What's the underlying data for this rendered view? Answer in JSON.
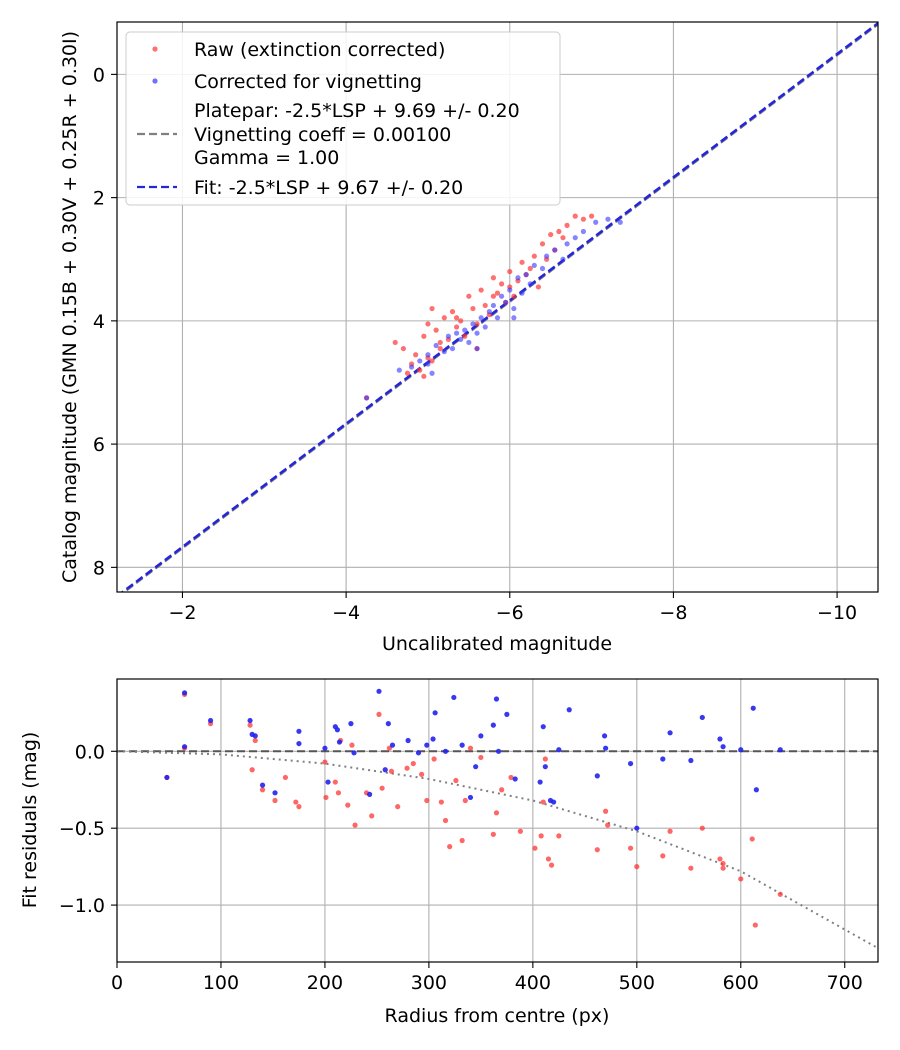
{
  "chart_data": [
    {
      "type": "scatter",
      "xlabel": "Uncalibrated magnitude",
      "ylabel": "Catalog magnitude (GMN 0.15B + 0.30V + 0.25R + 0.30I)",
      "xlim": [
        -1.2,
        -10.5
      ],
      "ylim": [
        8.4,
        -0.85
      ],
      "x_inverted": true,
      "y_inverted": true,
      "grid": true,
      "xticks": [
        -2,
        -4,
        -6,
        -8,
        -10
      ],
      "yticks": [
        0,
        2,
        4,
        6,
        8
      ],
      "xtick_labels": [
        "−2",
        "−4",
        "−6",
        "−8",
        "−10"
      ],
      "ytick_labels": [
        "0",
        "2",
        "4",
        "6",
        "8"
      ],
      "legend_position": "top-left",
      "legend": {
        "raw": "Raw (extinction corrected)",
        "corrected": "Corrected for vignetting",
        "platepar_lines": [
          "Platepar: -2.5*LSP + 9.69 +/- 0.20",
          "Vignetting coeff = 0.00100",
          "Gamma = 1.00"
        ],
        "fit": "Fit: -2.5*LSP + 9.67 +/- 0.20"
      },
      "colors": {
        "raw": "#ff3333",
        "corrected": "#3333ff",
        "platepar": "#808080",
        "fit": "#2626d9",
        "grid": "#b0b0b0"
      },
      "lines": [
        {
          "name": "platepar",
          "style": "dashed",
          "slope": 1,
          "intercept": 9.69
        },
        {
          "name": "fit",
          "style": "dashed",
          "slope": 1,
          "intercept": 9.67
        }
      ],
      "series": [
        {
          "name": "Raw (extinction corrected)",
          "points": [
            [
              -4.25,
              5.25
            ],
            [
              -4.6,
              4.35
            ],
            [
              -4.7,
              4.45
            ],
            [
              -4.75,
              4.85
            ],
            [
              -4.8,
              4.7
            ],
            [
              -4.85,
              4.55
            ],
            [
              -4.9,
              4.8
            ],
            [
              -4.95,
              4.25
            ],
            [
              -5.0,
              4.05
            ],
            [
              -5.0,
              4.6
            ],
            [
              -5.05,
              3.8
            ],
            [
              -5.1,
              4.15
            ],
            [
              -5.15,
              4.45
            ],
            [
              -5.2,
              3.95
            ],
            [
              -5.25,
              4.3
            ],
            [
              -5.3,
              3.85
            ],
            [
              -5.35,
              4.1
            ],
            [
              -5.4,
              4.0
            ],
            [
              -5.45,
              4.25
            ],
            [
              -5.5,
              3.6
            ],
            [
              -5.55,
              3.8
            ],
            [
              -5.6,
              4.05
            ],
            [
              -5.65,
              3.5
            ],
            [
              -5.7,
              3.75
            ],
            [
              -5.75,
              3.9
            ],
            [
              -5.8,
              3.3
            ],
            [
              -5.85,
              3.55
            ],
            [
              -5.9,
              3.4
            ],
            [
              -5.95,
              3.7
            ],
            [
              -6.0,
              3.2
            ],
            [
              -6.05,
              3.6
            ],
            [
              -6.1,
              3.35
            ],
            [
              -6.15,
              3.05
            ],
            [
              -6.2,
              3.25
            ],
            [
              -6.25,
              3.15
            ],
            [
              -6.3,
              2.95
            ],
            [
              -6.35,
              3.45
            ],
            [
              -6.4,
              2.75
            ],
            [
              -6.45,
              3.0
            ],
            [
              -6.5,
              2.6
            ],
            [
              -6.55,
              2.85
            ],
            [
              -6.6,
              2.55
            ],
            [
              -6.65,
              2.65
            ],
            [
              -6.7,
              2.45
            ],
            [
              -6.8,
              2.3
            ],
            [
              -6.9,
              2.35
            ],
            [
              -7.0,
              2.3
            ],
            [
              -5.05,
              4.65
            ],
            [
              -4.95,
              4.9
            ],
            [
              -5.15,
              4.35
            ],
            [
              -5.35,
              3.95
            ],
            [
              -5.6,
              4.45
            ],
            [
              -5.8,
              3.6
            ],
            [
              -6.0,
              3.45
            ]
          ]
        },
        {
          "name": "Corrected for vignetting",
          "points": [
            [
              -4.25,
              5.25
            ],
            [
              -4.65,
              4.8
            ],
            [
              -4.8,
              4.75
            ],
            [
              -4.9,
              4.65
            ],
            [
              -5.0,
              4.55
            ],
            [
              -5.05,
              4.85
            ],
            [
              -5.1,
              4.4
            ],
            [
              -5.2,
              4.5
            ],
            [
              -5.25,
              4.25
            ],
            [
              -5.3,
              4.45
            ],
            [
              -5.4,
              4.3
            ],
            [
              -5.45,
              4.15
            ],
            [
              -5.5,
              4.35
            ],
            [
              -5.55,
              4.05
            ],
            [
              -5.6,
              4.2
            ],
            [
              -5.65,
              3.95
            ],
            [
              -5.7,
              4.1
            ],
            [
              -5.75,
              3.85
            ],
            [
              -5.8,
              3.75
            ],
            [
              -5.85,
              3.95
            ],
            [
              -5.9,
              3.6
            ],
            [
              -5.95,
              3.7
            ],
            [
              -6.0,
              3.5
            ],
            [
              -6.05,
              3.8
            ],
            [
              -6.1,
              3.3
            ],
            [
              -6.15,
              3.55
            ],
            [
              -6.2,
              3.25
            ],
            [
              -6.25,
              3.4
            ],
            [
              -6.3,
              3.1
            ],
            [
              -6.4,
              3.15
            ],
            [
              -6.45,
              2.95
            ],
            [
              -6.55,
              2.85
            ],
            [
              -6.65,
              3.0
            ],
            [
              -6.7,
              2.75
            ],
            [
              -6.8,
              2.65
            ],
            [
              -6.9,
              2.55
            ],
            [
              -7.05,
              2.4
            ],
            [
              -7.2,
              2.35
            ],
            [
              -7.35,
              2.4
            ],
            [
              -5.0,
              4.7
            ],
            [
              -5.35,
              4.2
            ],
            [
              -5.6,
              4.45
            ],
            [
              -6.05,
              3.95
            ]
          ]
        }
      ]
    },
    {
      "type": "scatter",
      "xlabel": "Radius from centre (px)",
      "ylabel": "Fit residuals (mag)",
      "xlim": [
        0,
        732
      ],
      "ylim": [
        -1.37,
        0.47
      ],
      "grid": true,
      "xticks": [
        0,
        100,
        200,
        300,
        400,
        500,
        600,
        700
      ],
      "yticks": [
        0.0,
        -0.5,
        -1.0
      ],
      "xtick_labels": [
        "0",
        "100",
        "200",
        "300",
        "400",
        "500",
        "600",
        "700"
      ],
      "ytick_labels": [
        "0.0",
        "−0.5",
        "−1.0"
      ],
      "colors": {
        "raw": "#ff3333",
        "corrected": "#2222ee",
        "zero_line": "#555555",
        "model": "#808080"
      },
      "lines": [
        {
          "name": "zero",
          "style": "dashed",
          "y": 0
        },
        {
          "name": "vignetting model",
          "style": "dotted",
          "x": [
            0,
            100,
            200,
            300,
            400,
            500,
            600,
            732
          ],
          "y": [
            0,
            -0.02,
            -0.08,
            -0.18,
            -0.32,
            -0.52,
            -0.78,
            -1.28
          ]
        }
      ],
      "series": [
        {
          "name": "Raw (extinction corrected)",
          "points": [
            [
              48,
              -0.17
            ],
            [
              65,
              0.37
            ],
            [
              65,
              0.02
            ],
            [
              90,
              0.18
            ],
            [
              128,
              0.17
            ],
            [
              130,
              -0.12
            ],
            [
              133,
              0.07
            ],
            [
              140,
              -0.25
            ],
            [
              152,
              -0.32
            ],
            [
              162,
              -0.17
            ],
            [
              172,
              -0.33
            ],
            [
              175,
              -0.36
            ],
            [
              200,
              -0.07
            ],
            [
              201,
              -0.3
            ],
            [
              210,
              -0.2
            ],
            [
              213,
              -0.27
            ],
            [
              215,
              0.07
            ],
            [
              222,
              -0.35
            ],
            [
              226,
              0.04
            ],
            [
              229,
              -0.48
            ],
            [
              240,
              -0.27
            ],
            [
              245,
              -0.42
            ],
            [
              252,
              0.24
            ],
            [
              255,
              -0.24
            ],
            [
              262,
              0.02
            ],
            [
              264,
              -0.13
            ],
            [
              270,
              -0.36
            ],
            [
              279,
              -0.11
            ],
            [
              285,
              -0.08
            ],
            [
              293,
              -0.15
            ],
            [
              298,
              -0.32
            ],
            [
              305,
              -0.05
            ],
            [
              312,
              -0.33
            ],
            [
              316,
              -0.45
            ],
            [
              320,
              -0.62
            ],
            [
              326,
              -0.19
            ],
            [
              332,
              -0.58
            ],
            [
              335,
              -0.32
            ],
            [
              340,
              0.02
            ],
            [
              350,
              -0.04
            ],
            [
              362,
              -0.54
            ],
            [
              365,
              -0.4
            ],
            [
              370,
              -0.25
            ],
            [
              379,
              -0.17
            ],
            [
              388,
              -0.52
            ],
            [
              402,
              -0.63
            ],
            [
              408,
              -0.55
            ],
            [
              410,
              -0.33
            ],
            [
              412,
              -0.05
            ],
            [
              415,
              -0.7
            ],
            [
              418,
              -0.74
            ],
            [
              425,
              -0.55
            ],
            [
              462,
              -0.64
            ],
            [
              470,
              -0.39
            ],
            [
              472,
              -0.48
            ],
            [
              494,
              -0.63
            ],
            [
              500,
              -0.75
            ],
            [
              525,
              -0.68
            ],
            [
              532,
              -0.52
            ],
            [
              552,
              -0.76
            ],
            [
              563,
              -0.5
            ],
            [
              580,
              -0.7
            ],
            [
              583,
              -0.73
            ],
            [
              583,
              -0.76
            ],
            [
              600,
              -0.83
            ],
            [
              611,
              -0.57
            ],
            [
              614,
              -1.13
            ],
            [
              638,
              -0.93
            ]
          ]
        },
        {
          "name": "Corrected for vignetting",
          "points": [
            [
              48,
              -0.17
            ],
            [
              65,
              0.38
            ],
            [
              65,
              0.03
            ],
            [
              90,
              0.2
            ],
            [
              128,
              0.2
            ],
            [
              130,
              0.11
            ],
            [
              133,
              0.1
            ],
            [
              140,
              -0.22
            ],
            [
              152,
              -0.27
            ],
            [
              175,
              0.13
            ],
            [
              175,
              0.05
            ],
            [
              200,
              0.02
            ],
            [
              203,
              -0.2
            ],
            [
              210,
              0.16
            ],
            [
              212,
              0.14
            ],
            [
              214,
              0.06
            ],
            [
              225,
              0.18
            ],
            [
              228,
              -0.01
            ],
            [
              243,
              -0.28
            ],
            [
              252,
              0.39
            ],
            [
              258,
              -0.12
            ],
            [
              261,
              0.18
            ],
            [
              265,
              0.04
            ],
            [
              280,
              0.07
            ],
            [
              290,
              -0.01
            ],
            [
              298,
              0.04
            ],
            [
              304,
              0.08
            ],
            [
              306,
              0.25
            ],
            [
              316,
              0.0
            ],
            [
              324,
              0.35
            ],
            [
              332,
              0.04
            ],
            [
              340,
              -0.3
            ],
            [
              345,
              -0.1
            ],
            [
              350,
              0.1
            ],
            [
              362,
              0.17
            ],
            [
              365,
              0.34
            ],
            [
              367,
              0.0
            ],
            [
              375,
              0.24
            ],
            [
              383,
              -0.18
            ],
            [
              407,
              -0.2
            ],
            [
              410,
              0.16
            ],
            [
              412,
              -0.1
            ],
            [
              417,
              -0.32
            ],
            [
              420,
              -0.33
            ],
            [
              425,
              0.01
            ],
            [
              435,
              0.27
            ],
            [
              462,
              -0.16
            ],
            [
              469,
              0.1
            ],
            [
              470,
              0.02
            ],
            [
              494,
              -0.08
            ],
            [
              500,
              -0.5
            ],
            [
              525,
              -0.05
            ],
            [
              532,
              0.12
            ],
            [
              552,
              -0.06
            ],
            [
              563,
              0.22
            ],
            [
              580,
              0.08
            ],
            [
              583,
              0.03
            ],
            [
              600,
              0.01
            ],
            [
              612,
              0.28
            ],
            [
              615,
              -0.25
            ],
            [
              638,
              0.01
            ]
          ]
        }
      ]
    }
  ]
}
